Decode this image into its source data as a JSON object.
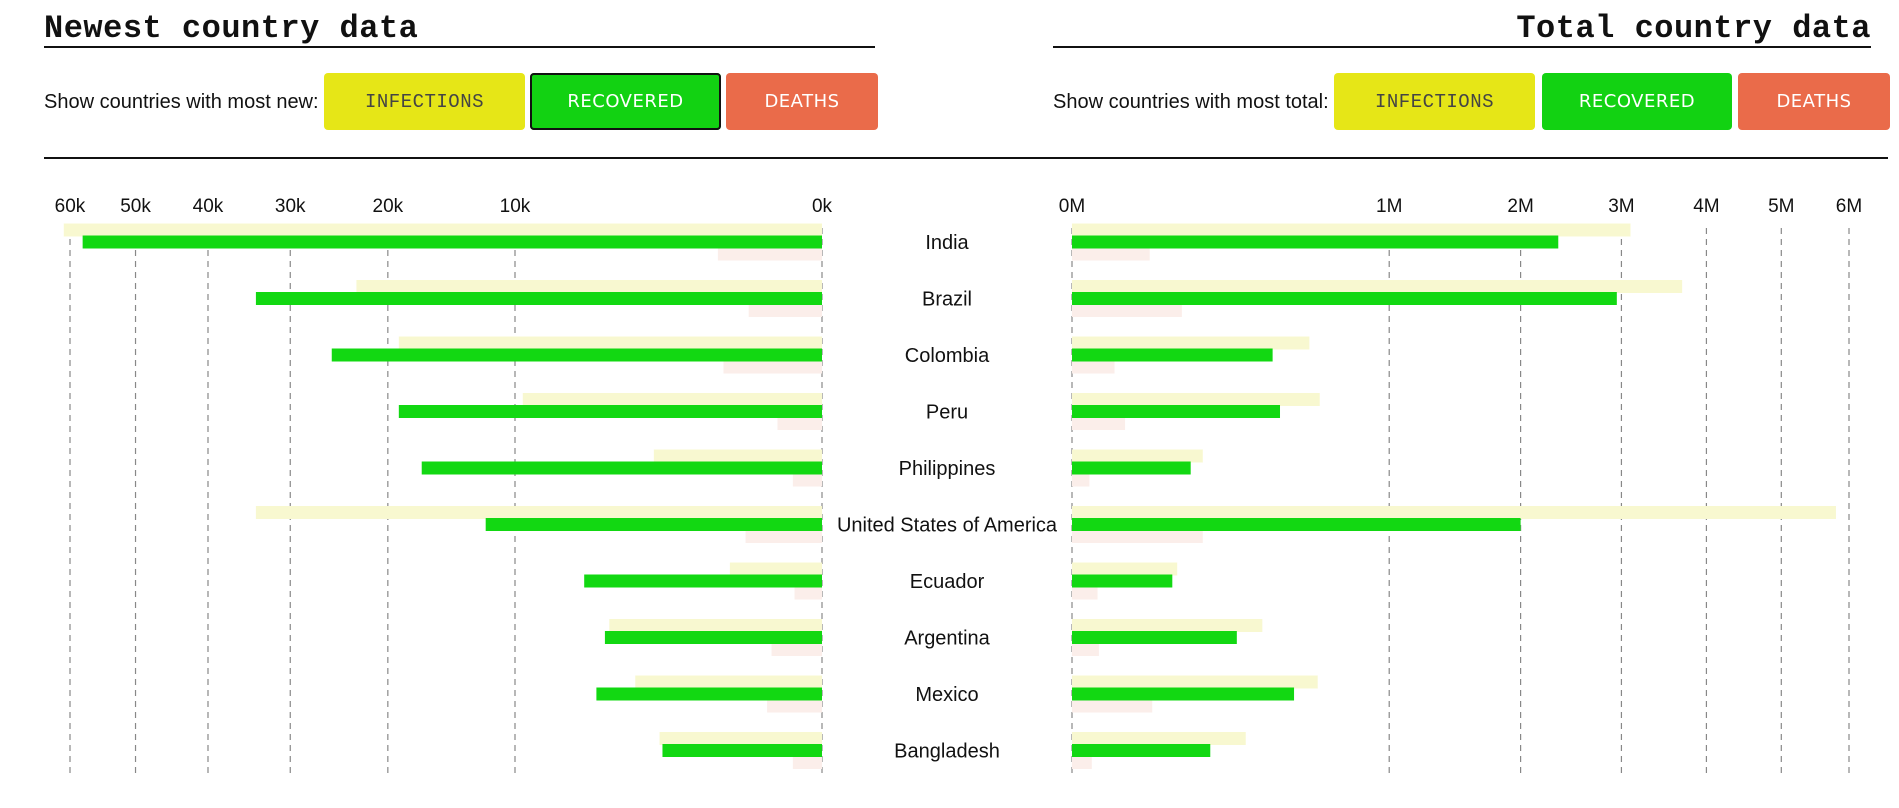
{
  "left_panel": {
    "title": "Newest country data",
    "prompt": "Show countries with most new:",
    "buttons": {
      "infections": "INFECTIONS",
      "recovered": "RECOVERED",
      "deaths": "DEATHS"
    },
    "active": "recovered"
  },
  "right_panel": {
    "title": "Total country data",
    "prompt": "Show countries with most total:",
    "buttons": {
      "infections": "INFECTIONS",
      "recovered": "RECOVERED",
      "deaths": "DEATHS"
    }
  },
  "colors": {
    "infections": "#f8f8d0",
    "recovered": "#12d812",
    "deaths": "#fbeeea",
    "grid": "#888888"
  },
  "chart_data": [
    {
      "type": "bar",
      "orientation": "horizontal-reversed",
      "axis_scale": "sqrt",
      "xlim": [
        0,
        60000
      ],
      "ticks": [
        60000,
        50000,
        40000,
        30000,
        20000,
        10000,
        0
      ],
      "tick_labels": [
        "60k",
        "50k",
        "40k",
        "30k",
        "20k",
        "10k",
        "0k"
      ],
      "categories": [
        "India",
        "Brazil",
        "Colombia",
        "Peru",
        "Philippines",
        "United States of America",
        "Ecuador",
        "Argentina",
        "Mexico",
        "Bangladesh"
      ],
      "series": [
        {
          "name": "infections",
          "values": [
            61000,
            23000,
            19000,
            9500,
            3000,
            34000,
            900,
            4800,
            3700,
            2800
          ]
        },
        {
          "name": "recovered",
          "values": [
            58000,
            34000,
            25500,
            19000,
            17000,
            12000,
            6000,
            5000,
            5400,
            2700
          ]
        },
        {
          "name": "deaths",
          "values": [
            1150,
            570,
            1030,
            210,
            90,
            620,
            80,
            270,
            320,
            90
          ]
        }
      ]
    },
    {
      "type": "bar",
      "orientation": "horizontal",
      "axis_scale": "sqrt",
      "xlim": [
        0,
        6000000
      ],
      "ticks": [
        0,
        1000000,
        2000000,
        3000000,
        4000000,
        5000000,
        6000000
      ],
      "tick_labels": [
        "0M",
        "1M",
        "2M",
        "3M",
        "4M",
        "5M",
        "6M"
      ],
      "categories": [
        "India",
        "Brazil",
        "Colombia",
        "Peru",
        "Philippines",
        "United States of America",
        "Ecuador",
        "Argentina",
        "Mexico",
        "Bangladesh"
      ],
      "series": [
        {
          "name": "infections",
          "values": [
            3100000,
            3700000,
            560000,
            610000,
            170000,
            5800000,
            110000,
            360000,
            600000,
            300000
          ]
        },
        {
          "name": "recovered",
          "values": [
            2350000,
            2950000,
            400000,
            430000,
            140000,
            2000000,
            100000,
            270000,
            490000,
            190000
          ]
        },
        {
          "name": "deaths",
          "values": [
            60000,
            120000,
            18000,
            28000,
            3000,
            170000,
            6500,
            7200,
            64000,
            3900
          ]
        }
      ]
    }
  ]
}
